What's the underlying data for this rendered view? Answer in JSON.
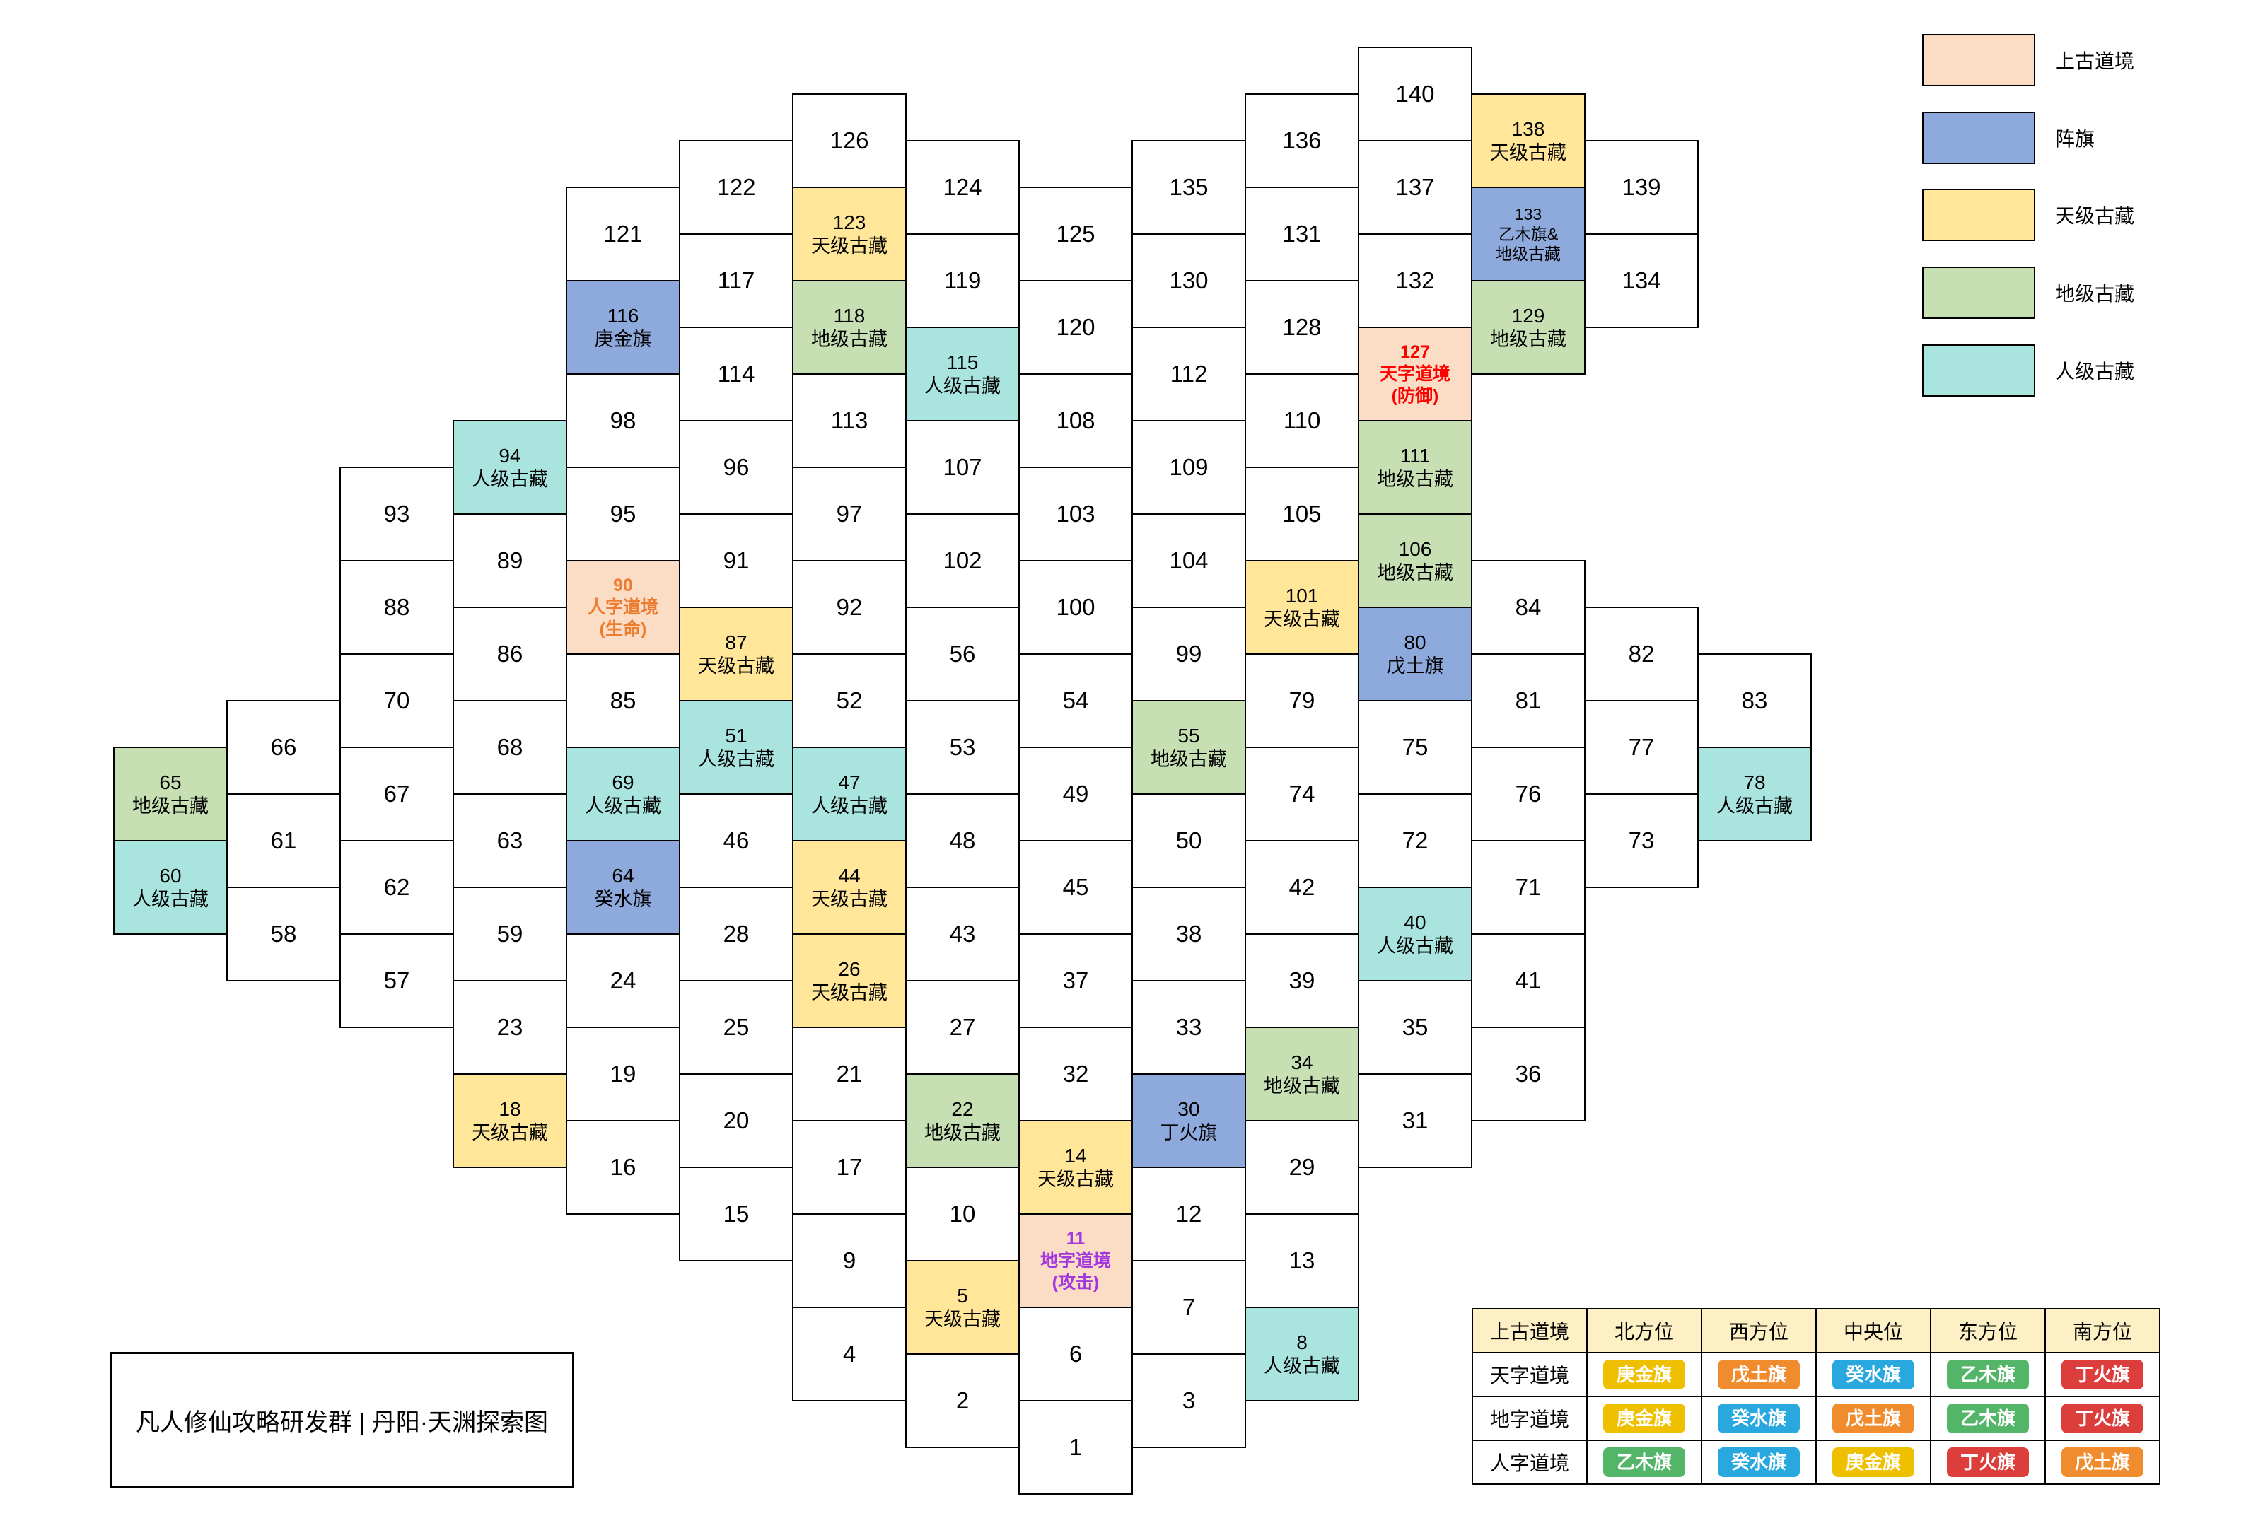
{
  "title": "丹阳·天渊探索图",
  "footer": {
    "text": "凡人修仙攻略研发群 | 丹阳·天渊探索图"
  },
  "legend": {
    "items": [
      {
        "name": "ancient-dao-realm",
        "label": "上古道境",
        "color": "#FBDCC5"
      },
      {
        "name": "formation-flag",
        "label": "阵旗",
        "color": "#8EA9DB"
      },
      {
        "name": "heaven-treasure",
        "label": "天级古藏",
        "color": "#FFE699"
      },
      {
        "name": "earth-treasure",
        "label": "地级古藏",
        "color": "#C6E0B4"
      },
      {
        "name": "human-treasure",
        "label": "人级古藏",
        "color": "#A9E4DE"
      }
    ]
  },
  "flag_colors": {
    "庚金旗": "#EFC000",
    "癸水旗": "#29A8E0",
    "戊土旗": "#F08C2E",
    "乙木旗": "#53B567",
    "丁火旗": "#DC3E3C"
  },
  "flag_table": {
    "headers": [
      "上古道境",
      "北方位",
      "西方位",
      "中央位",
      "东方位",
      "南方位"
    ],
    "rows": [
      {
        "realm": "天字道境",
        "flags": [
          "庚金旗",
          "戊土旗",
          "癸水旗",
          "乙木旗",
          "丁火旗"
        ]
      },
      {
        "realm": "地字道境",
        "flags": [
          "庚金旗",
          "癸水旗",
          "戊土旗",
          "乙木旗",
          "丁火旗"
        ]
      },
      {
        "realm": "人字道境",
        "flags": [
          "乙木旗",
          "癸水旗",
          "庚金旗",
          "丁火旗",
          "戊土旗"
        ]
      }
    ]
  },
  "map": {
    "kind_styles": {
      "P": {
        "bg": "#FFFFFF"
      },
      "T": {
        "bg": "#FFE699",
        "label": "天级古藏"
      },
      "D": {
        "bg": "#C6E0B4",
        "label": "地级古藏"
      },
      "R": {
        "bg": "#A9E4DE",
        "label": "人级古藏"
      },
      "F": {
        "bg": "#8EA9DB"
      },
      "FD": {
        "bg": "#8EA9DB",
        "lines": [
          "乙木旗&",
          "地级古藏"
        ]
      },
      "M": {
        "bg": "#FBDCC5"
      }
    },
    "cells": [
      [
        1,
        9,
        29
      ],
      [
        2,
        8,
        28
      ],
      [
        3,
        10,
        28
      ],
      [
        4,
        7,
        27
      ],
      [
        5,
        8,
        26,
        "T"
      ],
      [
        6,
        9,
        27
      ],
      [
        7,
        10,
        26
      ],
      [
        8,
        11,
        27,
        "R"
      ],
      [
        9,
        7,
        25
      ],
      [
        10,
        8,
        24
      ],
      [
        11,
        9,
        25,
        "M",
        "地字道境",
        "(攻击)",
        "#A238DD"
      ],
      [
        12,
        10,
        24
      ],
      [
        13,
        11,
        25
      ],
      [
        14,
        9,
        23,
        "T"
      ],
      [
        15,
        6,
        24
      ],
      [
        16,
        5,
        23
      ],
      [
        17,
        7,
        23
      ],
      [
        18,
        4,
        22,
        "T"
      ],
      [
        19,
        5,
        21
      ],
      [
        20,
        6,
        22
      ],
      [
        21,
        7,
        21
      ],
      [
        22,
        8,
        22,
        "D"
      ],
      [
        23,
        4,
        20
      ],
      [
        24,
        5,
        19
      ],
      [
        25,
        6,
        20
      ],
      [
        26,
        7,
        19,
        "T"
      ],
      [
        27,
        8,
        20
      ],
      [
        28,
        6,
        18
      ],
      [
        29,
        11,
        23
      ],
      [
        30,
        10,
        22,
        "F",
        "丁火旗"
      ],
      [
        31,
        12,
        22
      ],
      [
        32,
        9,
        21
      ],
      [
        33,
        10,
        20
      ],
      [
        34,
        11,
        21,
        "D"
      ],
      [
        35,
        12,
        20
      ],
      [
        36,
        13,
        21
      ],
      [
        37,
        9,
        19
      ],
      [
        38,
        10,
        18
      ],
      [
        39,
        11,
        19
      ],
      [
        40,
        12,
        18,
        "R"
      ],
      [
        41,
        13,
        19
      ],
      [
        42,
        11,
        17
      ],
      [
        43,
        8,
        18
      ],
      [
        44,
        7,
        17,
        "T"
      ],
      [
        45,
        9,
        17
      ],
      [
        46,
        6,
        16
      ],
      [
        47,
        7,
        15,
        "R"
      ],
      [
        48,
        8,
        16
      ],
      [
        49,
        9,
        15
      ],
      [
        50,
        10,
        16
      ],
      [
        51,
        6,
        14,
        "R"
      ],
      [
        52,
        7,
        13
      ],
      [
        53,
        8,
        14
      ],
      [
        54,
        9,
        13
      ],
      [
        55,
        10,
        14,
        "D"
      ],
      [
        56,
        8,
        12
      ],
      [
        57,
        3,
        19
      ],
      [
        58,
        2,
        18
      ],
      [
        59,
        4,
        18
      ],
      [
        60,
        1,
        17,
        "R"
      ],
      [
        61,
        2,
        16
      ],
      [
        62,
        3,
        17
      ],
      [
        63,
        4,
        16
      ],
      [
        64,
        5,
        17,
        "F",
        "癸水旗"
      ],
      [
        65,
        1,
        15,
        "D"
      ],
      [
        66,
        2,
        14
      ],
      [
        67,
        3,
        15
      ],
      [
        68,
        4,
        14
      ],
      [
        69,
        5,
        15,
        "R"
      ],
      [
        70,
        3,
        13
      ],
      [
        71,
        13,
        17
      ],
      [
        72,
        12,
        16
      ],
      [
        73,
        14,
        16
      ],
      [
        74,
        11,
        15
      ],
      [
        75,
        12,
        14
      ],
      [
        76,
        13,
        15
      ],
      [
        77,
        14,
        14
      ],
      [
        78,
        15,
        15,
        "R"
      ],
      [
        79,
        11,
        13
      ],
      [
        80,
        12,
        12,
        "F",
        "戊土旗"
      ],
      [
        81,
        13,
        13
      ],
      [
        82,
        14,
        12
      ],
      [
        83,
        15,
        13
      ],
      [
        84,
        13,
        11
      ],
      [
        85,
        5,
        13
      ],
      [
        86,
        4,
        12
      ],
      [
        87,
        6,
        12,
        "T"
      ],
      [
        88,
        3,
        11
      ],
      [
        89,
        4,
        10
      ],
      [
        90,
        5,
        11,
        "M",
        "人字道境",
        "(生命)",
        "#ED7D31"
      ],
      [
        91,
        6,
        10
      ],
      [
        92,
        7,
        11
      ],
      [
        93,
        3,
        9
      ],
      [
        94,
        4,
        8,
        "R"
      ],
      [
        95,
        5,
        9
      ],
      [
        96,
        6,
        8
      ],
      [
        97,
        7,
        9
      ],
      [
        98,
        5,
        7
      ],
      [
        99,
        10,
        12
      ],
      [
        100,
        9,
        11
      ],
      [
        101,
        11,
        11,
        "T"
      ],
      [
        102,
        8,
        10
      ],
      [
        103,
        9,
        9
      ],
      [
        104,
        10,
        10
      ],
      [
        105,
        11,
        9
      ],
      [
        106,
        12,
        10,
        "D"
      ],
      [
        107,
        8,
        8
      ],
      [
        108,
        9,
        7
      ],
      [
        109,
        10,
        8
      ],
      [
        110,
        11,
        7
      ],
      [
        111,
        12,
        8,
        "D"
      ],
      [
        112,
        10,
        6
      ],
      [
        113,
        7,
        7
      ],
      [
        114,
        6,
        6
      ],
      [
        115,
        8,
        6,
        "R"
      ],
      [
        116,
        5,
        5,
        "F",
        "庚金旗"
      ],
      [
        117,
        6,
        4
      ],
      [
        118,
        7,
        5,
        "D"
      ],
      [
        119,
        8,
        4
      ],
      [
        120,
        9,
        5
      ],
      [
        121,
        5,
        3
      ],
      [
        122,
        6,
        2
      ],
      [
        123,
        7,
        3,
        "T"
      ],
      [
        124,
        8,
        2
      ],
      [
        125,
        9,
        3
      ],
      [
        126,
        7,
        1
      ],
      [
        127,
        12,
        6,
        "M",
        "天字道境",
        "(防御)",
        "#FF0000"
      ],
      [
        128,
        11,
        5
      ],
      [
        129,
        13,
        5,
        "D"
      ],
      [
        130,
        10,
        4
      ],
      [
        131,
        11,
        3
      ],
      [
        132,
        12,
        4
      ],
      [
        133,
        13,
        3,
        "FD"
      ],
      [
        134,
        14,
        4
      ],
      [
        135,
        10,
        2
      ],
      [
        136,
        11,
        1
      ],
      [
        137,
        12,
        2
      ],
      [
        138,
        13,
        1,
        "T"
      ],
      [
        139,
        14,
        2
      ],
      [
        140,
        12,
        0
      ]
    ]
  }
}
